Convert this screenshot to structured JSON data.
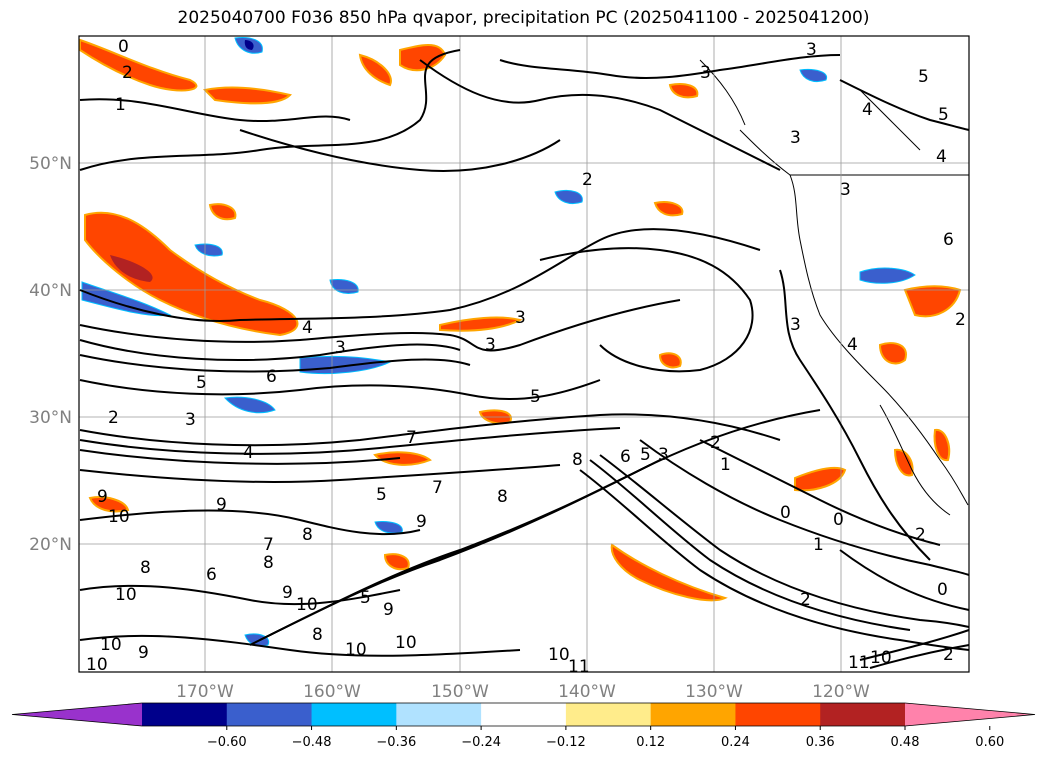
{
  "title": "2025040700 F036 850 hPa qvapor, precipitation PC (2025041100 - 2025041200)",
  "lat_labels": [
    "50°N",
    "40°N",
    "30°N",
    "20°N"
  ],
  "lon_labels": [
    "170°W",
    "160°W",
    "150°W",
    "140°W",
    "130°W",
    "120°W"
  ],
  "colorbar": {
    "ticks": [
      "−0.60",
      "−0.48",
      "−0.36",
      "−0.24",
      "−0.12",
      "0.12",
      "0.24",
      "0.36",
      "0.48",
      "0.60"
    ],
    "colors": [
      "#9932cc",
      "#00008b",
      "#3a5fcd",
      "#00bfff",
      "#b0e2ff",
      "#ffffff",
      "#ffec8b",
      "#ffa500",
      "#ff4500",
      "#b22222",
      "#ff82ab"
    ]
  },
  "contour_labels": [
    "0",
    "2",
    "1",
    "3",
    "4",
    "5",
    "6",
    "7",
    "8",
    "9",
    "10",
    "11"
  ]
}
